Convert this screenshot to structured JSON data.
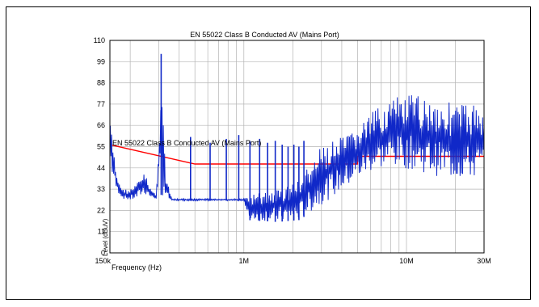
{
  "chart_data": {
    "type": "line",
    "title": "EN 55022 Class B Conducted AV (Mains Port)",
    "xlabel": "Frequency (Hz)",
    "ylabel": "Level (dBuV)",
    "x_scale": "log",
    "xlim": [
      150000,
      30000000
    ],
    "ylim": [
      0,
      110
    ],
    "y_ticks": [
      0,
      11,
      22,
      33,
      44,
      55,
      66,
      77,
      88,
      99,
      110
    ],
    "x_tick_labels": [
      {
        "value": 150000,
        "label": "150k"
      },
      {
        "value": 1000000,
        "label": "1M"
      },
      {
        "value": 10000000,
        "label": "10M"
      },
      {
        "value": 30000000,
        "label": "30M"
      }
    ],
    "grid": true,
    "series": [
      {
        "name": "EN 55022 Class B Conducted AV (Mains Port)",
        "color": "#ff0000",
        "x": [
          150000,
          500000,
          500000,
          5000000,
          5000000,
          30000000
        ],
        "y": [
          56,
          46,
          46,
          46,
          50,
          50
        ]
      },
      {
        "color": "#1028c8",
        "envelope": [
          {
            "x": 150000,
            "min": 48,
            "max": 74
          },
          {
            "x": 155000,
            "min": 40,
            "max": 58
          },
          {
            "x": 165000,
            "min": 32,
            "max": 40
          },
          {
            "x": 180000,
            "min": 28,
            "max": 33
          },
          {
            "x": 200000,
            "min": 27,
            "max": 33
          },
          {
            "x": 220000,
            "min": 28,
            "max": 36
          },
          {
            "x": 240000,
            "min": 30,
            "max": 42
          },
          {
            "x": 255000,
            "min": 30,
            "max": 38
          },
          {
            "x": 270000,
            "min": 28,
            "max": 33
          },
          {
            "x": 290000,
            "min": 28,
            "max": 30
          },
          {
            "x": 310000,
            "min": 30,
            "max": 103
          },
          {
            "x": 330000,
            "min": 28,
            "max": 40
          },
          {
            "x": 360000,
            "min": 27,
            "max": 28
          },
          {
            "x": 480000,
            "min": 27,
            "max": 28
          },
          {
            "x": 1000000,
            "min": 27,
            "max": 28
          },
          {
            "x": 1050000,
            "min": 17,
            "max": 30
          },
          {
            "x": 1600000,
            "min": 16,
            "max": 33
          },
          {
            "x": 2200000,
            "min": 17,
            "max": 38
          },
          {
            "x": 3000000,
            "min": 25,
            "max": 55
          },
          {
            "x": 4500000,
            "min": 35,
            "max": 62
          },
          {
            "x": 6000000,
            "min": 42,
            "max": 72
          },
          {
            "x": 8000000,
            "min": 45,
            "max": 80
          },
          {
            "x": 11000000,
            "min": 43,
            "max": 82
          },
          {
            "x": 15000000,
            "min": 40,
            "max": 80
          },
          {
            "x": 20000000,
            "min": 38,
            "max": 78
          },
          {
            "x": 30000000,
            "min": 38,
            "max": 77
          }
        ],
        "spikes": [
          {
            "x": 310000,
            "y": 103
          },
          {
            "x": 470000,
            "y": 60
          },
          {
            "x": 620000,
            "y": 57
          },
          {
            "x": 780000,
            "y": 59
          },
          {
            "x": 930000,
            "y": 61
          },
          {
            "x": 1090000,
            "y": 58
          },
          {
            "x": 1250000,
            "y": 59
          },
          {
            "x": 1400000,
            "y": 57
          },
          {
            "x": 1560000,
            "y": 58
          },
          {
            "x": 1720000,
            "y": 56
          },
          {
            "x": 1870000,
            "y": 55
          },
          {
            "x": 2030000,
            "y": 56
          },
          {
            "x": 2180000,
            "y": 55
          },
          {
            "x": 2340000,
            "y": 58
          }
        ]
      }
    ]
  }
}
